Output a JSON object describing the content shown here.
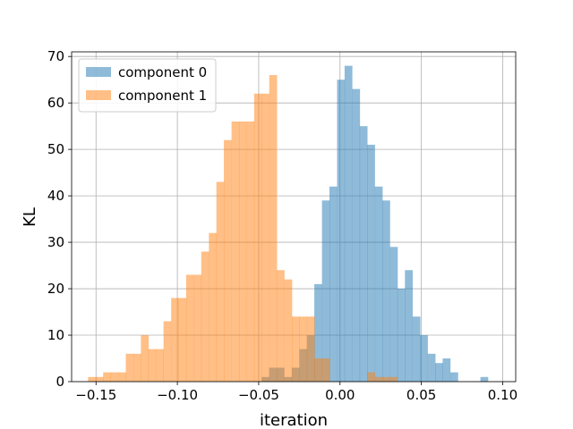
{
  "chart_data": {
    "type": "histogram",
    "xlabel": "iteration",
    "ylabel": "KL",
    "xlim": [
      -0.165,
      0.108
    ],
    "ylim": [
      0,
      71
    ],
    "x_ticks": [
      -0.15,
      -0.1,
      -0.05,
      0.0,
      0.05,
      0.1
    ],
    "x_tick_labels": [
      "−0.15",
      "−0.10",
      "−0.05",
      "0.00",
      "0.05",
      "0.10"
    ],
    "y_ticks": [
      0,
      10,
      20,
      30,
      40,
      50,
      60,
      70
    ],
    "y_tick_labels": [
      "0",
      "10",
      "20",
      "30",
      "40",
      "50",
      "60",
      "70"
    ],
    "grid": true,
    "legend_position": "top-left",
    "series": [
      {
        "name": "component 0",
        "color": "#1f77b4",
        "alpha": 0.5,
        "bin_width": 0.00464,
        "bin_starts": [
          -0.0482,
          -0.0436,
          -0.039,
          -0.0343,
          -0.0297,
          -0.025,
          -0.0204,
          -0.0158,
          -0.0111,
          -0.0065,
          -0.0018,
          0.0028,
          0.0075,
          0.0121,
          0.0167,
          0.0214,
          0.026,
          0.0307,
          0.0353,
          0.0399,
          0.0446,
          0.0492,
          0.0539,
          0.0585,
          0.0631,
          0.0678,
          0.0724,
          0.0771,
          0.0817,
          0.0863,
          0.091
        ],
        "counts": [
          1,
          3,
          3,
          1,
          3,
          7,
          10,
          21,
          39,
          42,
          65,
          68,
          63,
          55,
          51,
          42,
          39,
          29,
          20,
          24,
          14,
          10,
          6,
          4,
          5,
          2,
          0,
          0,
          0,
          1,
          0
        ]
      },
      {
        "name": "component 1",
        "color": "#ff7f0e",
        "alpha": 0.5,
        "bin_width": 0.00464,
        "bin_starts": [
          -0.1549,
          -0.1502,
          -0.1456,
          -0.141,
          -0.1363,
          -0.1317,
          -0.127,
          -0.1224,
          -0.1178,
          -0.1131,
          -0.1085,
          -0.1038,
          -0.0992,
          -0.0946,
          -0.0899,
          -0.0853,
          -0.0806,
          -0.076,
          -0.0714,
          -0.0667,
          -0.0621,
          -0.0574,
          -0.0528,
          -0.0482,
          -0.0435,
          -0.0389,
          -0.0342,
          -0.0296,
          -0.025,
          -0.0203,
          -0.0157,
          -0.011,
          -0.0064,
          -0.0018,
          0.0029,
          0.0075,
          0.0122,
          0.0168,
          0.0214,
          0.0261,
          0.0307,
          0.0354,
          0.04
        ],
        "counts": [
          1,
          1,
          2,
          2,
          2,
          6,
          6,
          10,
          7,
          7,
          13,
          18,
          18,
          23,
          23,
          28,
          32,
          43,
          52,
          56,
          56,
          56,
          62,
          62,
          66,
          24,
          22,
          14,
          14,
          14,
          5,
          5,
          0,
          0,
          0,
          0,
          0,
          2,
          1,
          1,
          1,
          0,
          0
        ]
      }
    ]
  }
}
